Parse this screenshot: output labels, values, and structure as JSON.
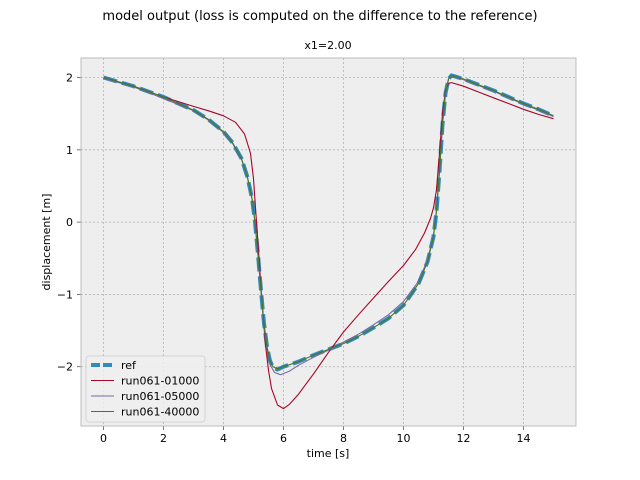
{
  "figure": {
    "suptitle": "model output (loss is computed on the difference to the reference)"
  },
  "chart_data": {
    "type": "line",
    "title": "x1=2.00",
    "xlabel": "time [s]",
    "ylabel": "displacement [m]",
    "xlim": [
      -0.75,
      15.75
    ],
    "ylim": [
      -2.82,
      2.27
    ],
    "xticks": [
      0,
      2,
      4,
      6,
      8,
      10,
      12,
      14
    ],
    "yticks": [
      -2,
      -1,
      0,
      1,
      2
    ],
    "xtick_labels": [
      "0",
      "2",
      "4",
      "6",
      "8",
      "10",
      "12",
      "14"
    ],
    "ytick_labels": [
      "−2",
      "−1",
      "0",
      "1",
      "2"
    ],
    "grid": true,
    "legend_position": "lower-left",
    "series": [
      {
        "name": "ref",
        "color": "#348ABD",
        "dashed": true,
        "x": [
          0,
          1,
          2,
          3,
          3.5,
          4,
          4.3,
          4.6,
          4.8,
          4.95,
          5.05,
          5.15,
          5.25,
          5.35,
          5.45,
          5.55,
          5.65,
          5.8,
          6,
          6.5,
          7,
          7.5,
          8,
          8.5,
          9,
          9.5,
          10,
          10.5,
          10.8,
          11.0,
          11.1,
          11.2,
          11.3,
          11.4,
          11.5,
          11.6,
          12,
          12.5,
          13,
          13.5,
          14,
          14.5,
          15
        ],
        "y": [
          2.0,
          1.88,
          1.73,
          1.55,
          1.42,
          1.25,
          1.1,
          0.88,
          0.62,
          0.33,
          0.0,
          -0.45,
          -0.95,
          -1.4,
          -1.72,
          -1.92,
          -2.01,
          -2.04,
          -2.0,
          -1.93,
          -1.84,
          -1.76,
          -1.68,
          -1.58,
          -1.46,
          -1.33,
          -1.15,
          -0.85,
          -0.55,
          -0.2,
          0.15,
          0.7,
          1.35,
          1.78,
          1.98,
          2.03,
          1.98,
          1.9,
          1.82,
          1.73,
          1.64,
          1.56,
          1.47
        ]
      },
      {
        "name": "run061-01000",
        "color": "#A60628",
        "dashed": false,
        "x": [
          0,
          1,
          2,
          3,
          3.5,
          4,
          4.4,
          4.7,
          4.9,
          5.0,
          5.1,
          5.2,
          5.3,
          5.4,
          5.5,
          5.6,
          5.8,
          6.0,
          6.2,
          6.5,
          7,
          7.5,
          8,
          8.5,
          9,
          9.5,
          10,
          10.4,
          10.7,
          10.9,
          11.0,
          11.1,
          11.2,
          11.3,
          11.4,
          11.5,
          11.6,
          12,
          12.5,
          13,
          13.5,
          14,
          14.5,
          15
        ],
        "y": [
          2.0,
          1.88,
          1.73,
          1.6,
          1.54,
          1.47,
          1.38,
          1.22,
          0.95,
          0.6,
          0.0,
          -0.6,
          -1.2,
          -1.7,
          -2.05,
          -2.3,
          -2.53,
          -2.58,
          -2.52,
          -2.38,
          -2.1,
          -1.8,
          -1.52,
          -1.28,
          -1.05,
          -0.82,
          -0.6,
          -0.38,
          -0.15,
          0.05,
          0.2,
          0.45,
          0.95,
          1.5,
          1.82,
          1.92,
          1.93,
          1.88,
          1.8,
          1.72,
          1.64,
          1.56,
          1.49,
          1.43
        ]
      },
      {
        "name": "run061-05000",
        "color": "#7A68A6",
        "dashed": false,
        "x": [
          0,
          1,
          2,
          3,
          3.5,
          4,
          4.3,
          4.6,
          4.8,
          4.95,
          5.05,
          5.15,
          5.25,
          5.35,
          5.45,
          5.55,
          5.7,
          5.9,
          6.2,
          6.5,
          7,
          7.5,
          8,
          8.5,
          9,
          9.5,
          10,
          10.5,
          10.8,
          11.0,
          11.1,
          11.2,
          11.3,
          11.4,
          11.5,
          11.6,
          12,
          12.5,
          13,
          13.5,
          14,
          14.5,
          15
        ],
        "y": [
          1.99,
          1.87,
          1.71,
          1.54,
          1.41,
          1.24,
          1.09,
          0.87,
          0.61,
          0.32,
          0.0,
          -0.46,
          -0.97,
          -1.43,
          -1.76,
          -1.97,
          -2.08,
          -2.11,
          -2.06,
          -1.98,
          -1.87,
          -1.77,
          -1.66,
          -1.55,
          -1.42,
          -1.28,
          -1.1,
          -0.82,
          -0.52,
          -0.18,
          0.17,
          0.72,
          1.37,
          1.79,
          1.98,
          2.02,
          1.97,
          1.89,
          1.81,
          1.72,
          1.63,
          1.55,
          1.46
        ]
      },
      {
        "name": "run061-40000",
        "color": "#467821",
        "dashed": false,
        "x": [
          0,
          1,
          2,
          3,
          3.5,
          4,
          4.3,
          4.6,
          4.8,
          4.95,
          5.05,
          5.15,
          5.25,
          5.35,
          5.45,
          5.55,
          5.65,
          5.8,
          6,
          6.5,
          7,
          7.5,
          8,
          8.5,
          9,
          9.5,
          10,
          10.5,
          10.8,
          11.0,
          11.1,
          11.2,
          11.3,
          11.4,
          11.5,
          11.6,
          12,
          12.5,
          13,
          13.5,
          14,
          14.5,
          15
        ],
        "y": [
          2.0,
          1.88,
          1.73,
          1.55,
          1.42,
          1.25,
          1.1,
          0.88,
          0.62,
          0.33,
          0.0,
          -0.45,
          -0.95,
          -1.4,
          -1.72,
          -1.92,
          -2.0,
          -2.03,
          -2.0,
          -1.93,
          -1.84,
          -1.76,
          -1.68,
          -1.58,
          -1.46,
          -1.33,
          -1.15,
          -0.85,
          -0.55,
          -0.2,
          0.15,
          0.7,
          1.35,
          1.78,
          1.98,
          2.03,
          1.98,
          1.9,
          1.82,
          1.73,
          1.64,
          1.56,
          1.47
        ]
      }
    ]
  }
}
